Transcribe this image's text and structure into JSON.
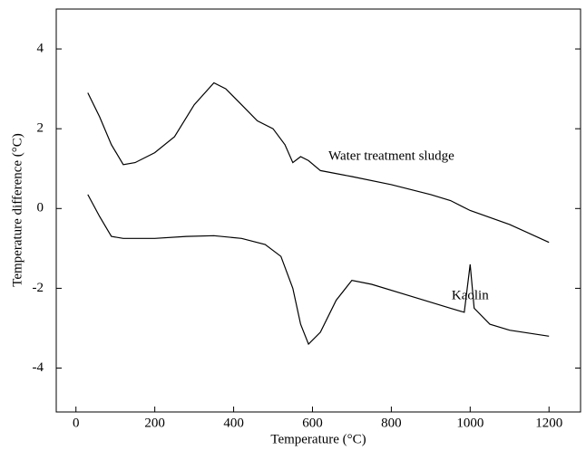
{
  "chart_data": {
    "type": "line",
    "xlabel": "Temperature (°C)",
    "ylabel": "Temperature difference (°C)",
    "xlim": [
      -50,
      1280
    ],
    "ylim": [
      -5.1,
      5
    ],
    "xticks": [
      0,
      200,
      400,
      600,
      800,
      1000,
      1200
    ],
    "yticks": [
      -4,
      -2,
      0,
      2,
      4
    ],
    "series": [
      {
        "name": "Water treatment sludge",
        "color": "#000000",
        "x": [
          30,
          60,
          90,
          120,
          150,
          200,
          250,
          300,
          350,
          380,
          420,
          460,
          500,
          530,
          550,
          570,
          590,
          620,
          700,
          800,
          900,
          950,
          1000,
          1100,
          1200
        ],
        "values": [
          2.9,
          2.3,
          1.6,
          1.1,
          1.15,
          1.4,
          1.8,
          2.6,
          3.15,
          3.0,
          2.6,
          2.2,
          2.0,
          1.6,
          1.15,
          1.3,
          1.2,
          0.95,
          0.8,
          0.6,
          0.35,
          0.2,
          -0.05,
          -0.4,
          -0.85
        ]
      },
      {
        "name": "Kaolin",
        "color": "#000000",
        "x": [
          30,
          60,
          90,
          120,
          200,
          280,
          350,
          420,
          480,
          520,
          550,
          570,
          590,
          620,
          660,
          700,
          750,
          850,
          950,
          985,
          1000,
          1010,
          1050,
          1100,
          1200
        ],
        "values": [
          0.35,
          -0.2,
          -0.7,
          -0.75,
          -0.75,
          -0.7,
          -0.68,
          -0.75,
          -0.9,
          -1.2,
          -2.0,
          -2.9,
          -3.4,
          -3.1,
          -2.3,
          -1.8,
          -1.9,
          -2.2,
          -2.5,
          -2.6,
          -1.4,
          -2.5,
          -2.9,
          -3.05,
          -3.2
        ]
      }
    ]
  }
}
